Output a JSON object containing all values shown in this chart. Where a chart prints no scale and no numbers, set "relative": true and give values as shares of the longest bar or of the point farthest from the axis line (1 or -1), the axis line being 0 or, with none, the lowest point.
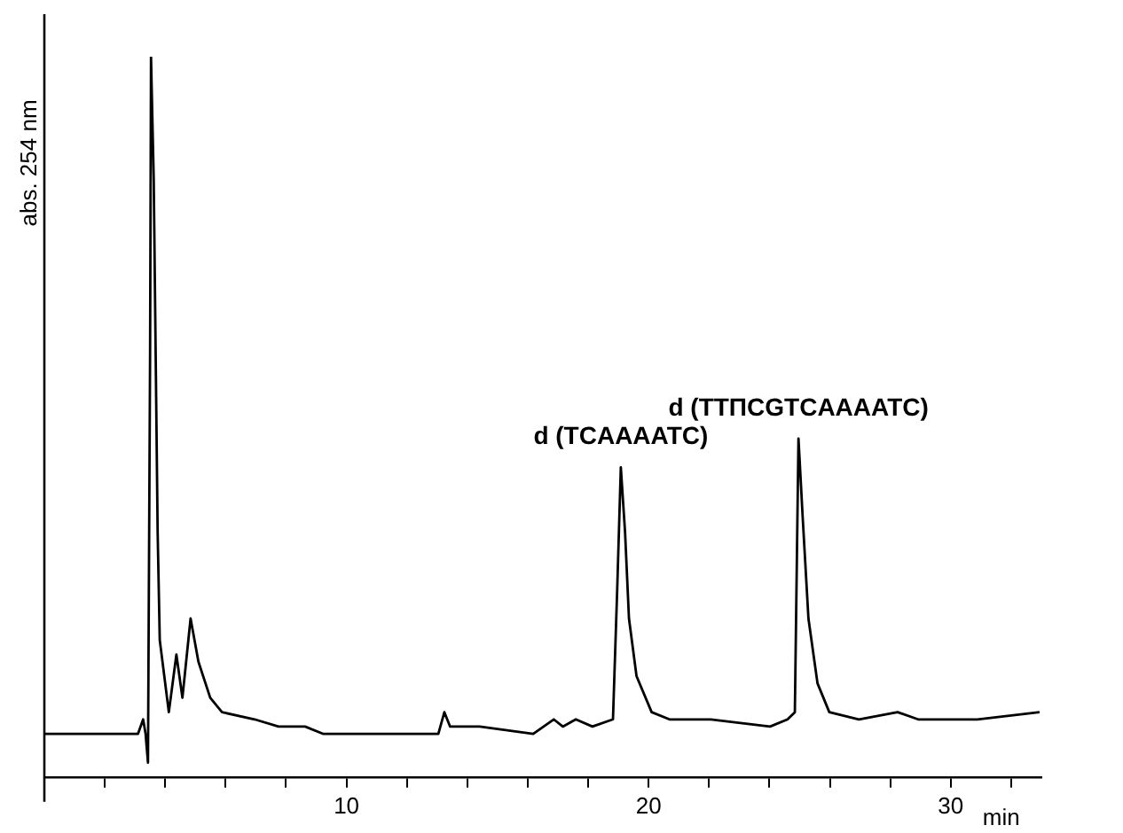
{
  "chart_data": {
    "type": "line",
    "relative": true,
    "ylabel": "abs. 254 nm",
    "xlabel": "min",
    "xlim": [
      0,
      33
    ],
    "xticks": [
      {
        "value": 2,
        "label": null
      },
      {
        "value": 4,
        "label": null
      },
      {
        "value": 6,
        "label": null
      },
      {
        "value": 8,
        "label": null
      },
      10,
      {
        "value": 12,
        "label": null
      },
      {
        "value": 14,
        "label": null
      },
      {
        "value": 16,
        "label": null
      },
      {
        "value": 18,
        "label": null
      },
      20,
      {
        "value": 22,
        "label": null
      },
      {
        "value": 24,
        "label": null
      },
      {
        "value": 26,
        "label": null
      },
      {
        "value": 28,
        "label": null
      },
      30,
      {
        "value": 32,
        "label": null
      }
    ],
    "grid": false,
    "legend": false,
    "marker": "none",
    "line_style": "solid",
    "annotations": [
      {
        "text": "d (TCAAAATC)",
        "x": 19.08,
        "y": 0.43
      },
      {
        "text": "d (TTΠCGTCAAAATC)",
        "x": 24.96,
        "y": 0.47
      }
    ],
    "x": [
      0,
      3.1,
      3.27,
      3.35,
      3.43,
      3.5,
      3.53,
      3.62,
      3.75,
      3.82,
      4.12,
      4.37,
      4.57,
      4.84,
      5.1,
      5.49,
      5.88,
      6.96,
      7.75,
      8.63,
      9.22,
      10.3,
      13.04,
      13.24,
      13.43,
      14.41,
      16.18,
      16.86,
      17.16,
      17.59,
      18.14,
      18.82,
      18.96,
      19.08,
      19.22,
      19.35,
      19.6,
      20.1,
      20.69,
      22.06,
      24.02,
      24.6,
      24.84,
      24.96,
      25.1,
      25.29,
      25.59,
      25.98,
      26.96,
      28.24,
      28.92,
      30.88,
      32.94
    ],
    "series": [
      {
        "color": "#000000",
        "values": [
          0.06,
          0.06,
          0.08,
          0.06,
          0.02,
          0.59,
          1,
          0.83,
          0.34,
          0.19,
          0.09,
          0.17,
          0.11,
          0.22,
          0.16,
          0.11,
          0.09,
          0.08,
          0.07,
          0.07,
          0.06,
          0.06,
          0.06,
          0.09,
          0.07,
          0.07,
          0.06,
          0.08,
          0.07,
          0.08,
          0.07,
          0.08,
          0.26,
          0.43,
          0.34,
          0.22,
          0.14,
          0.09,
          0.08,
          0.08,
          0.07,
          0.08,
          0.09,
          0.47,
          0.36,
          0.22,
          0.13,
          0.09,
          0.08,
          0.09,
          0.08,
          0.08,
          0.09
        ]
      }
    ]
  }
}
